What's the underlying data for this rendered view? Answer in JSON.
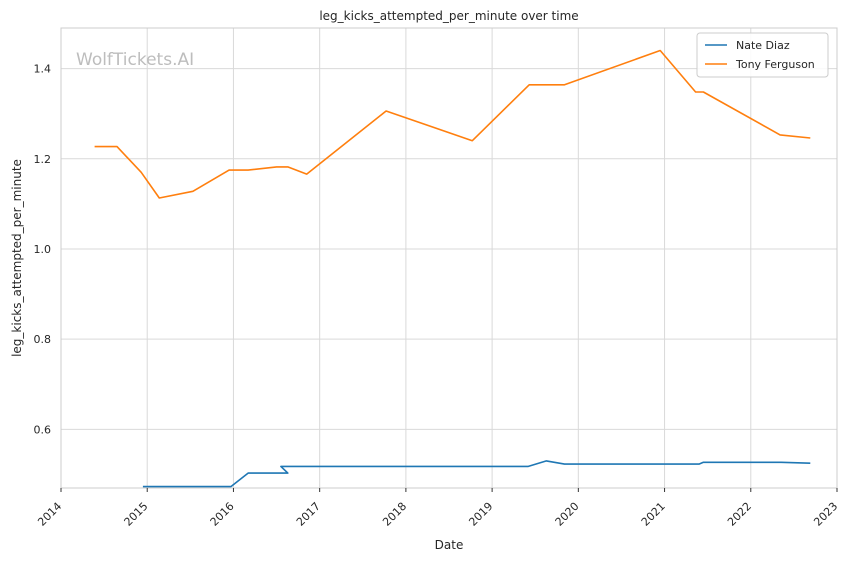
{
  "chart_data": {
    "type": "line",
    "title": "leg_kicks_attempted_per_minute over time",
    "xlabel": "Date",
    "ylabel": "leg_kicks_attempted_per_minute",
    "watermark": "WolfTickets.AI",
    "xlim": [
      2014.0,
      2023.0
    ],
    "ylim": [
      0.47,
      1.49
    ],
    "x_ticks": [
      "2014",
      "2015",
      "2016",
      "2017",
      "2018",
      "2019",
      "2020",
      "2021",
      "2022",
      "2023"
    ],
    "y_ticks": [
      "0.6",
      "0.8",
      "1.0",
      "1.2",
      "1.4"
    ],
    "grid": true,
    "legend_position": "top-right",
    "series": [
      {
        "name": "Nate Diaz",
        "color": "#1f77b4",
        "x": [
          "2014-12-20",
          "2015-12-19",
          "2016-03-05",
          "2016-08-20",
          "2016-06-01",
          "2019-06-01",
          "2019-08-17",
          "2019-11-02",
          "2021-06-12",
          "2021-06-12",
          "2022-05-01",
          "2022-09-10"
        ],
        "xdec": [
          2014.95,
          2015.97,
          2016.17,
          2016.63,
          2016.55,
          2019.42,
          2019.63,
          2019.84,
          2021.4,
          2021.45,
          2022.35,
          2022.69
        ],
        "y": [
          0.473,
          0.473,
          0.503,
          0.503,
          0.518,
          0.518,
          0.53,
          0.523,
          0.523,
          0.527,
          0.527,
          0.525
        ]
      },
      {
        "name": "Tony Ferguson",
        "color": "#ff7f0e",
        "x": [
          "2014-05-24",
          "2014-08-23",
          "2014-12-06",
          "2015-02-21",
          "2015-07-15",
          "2015-12-11",
          "2016-03-01",
          "2016-07-01",
          "2016-08-15",
          "2016-11-05",
          "2017-10-07",
          "2018-10-06",
          "2019-06-08",
          "2019-11-01",
          "2020-12-12",
          "2021-05-15",
          "2021-06-01",
          "2022-05-07",
          "2022-09-10"
        ],
        "xdec": [
          2014.39,
          2014.65,
          2014.93,
          2015.14,
          2015.53,
          2015.95,
          2016.17,
          2016.5,
          2016.63,
          2016.85,
          2017.77,
          2018.77,
          2019.43,
          2019.84,
          2020.95,
          2021.36,
          2021.45,
          2022.34,
          2022.69
        ],
        "y": [
          1.227,
          1.227,
          1.17,
          1.113,
          1.128,
          1.175,
          1.175,
          1.182,
          1.182,
          1.166,
          1.306,
          1.24,
          1.364,
          1.364,
          1.44,
          1.348,
          1.348,
          1.253,
          1.246
        ]
      }
    ]
  }
}
